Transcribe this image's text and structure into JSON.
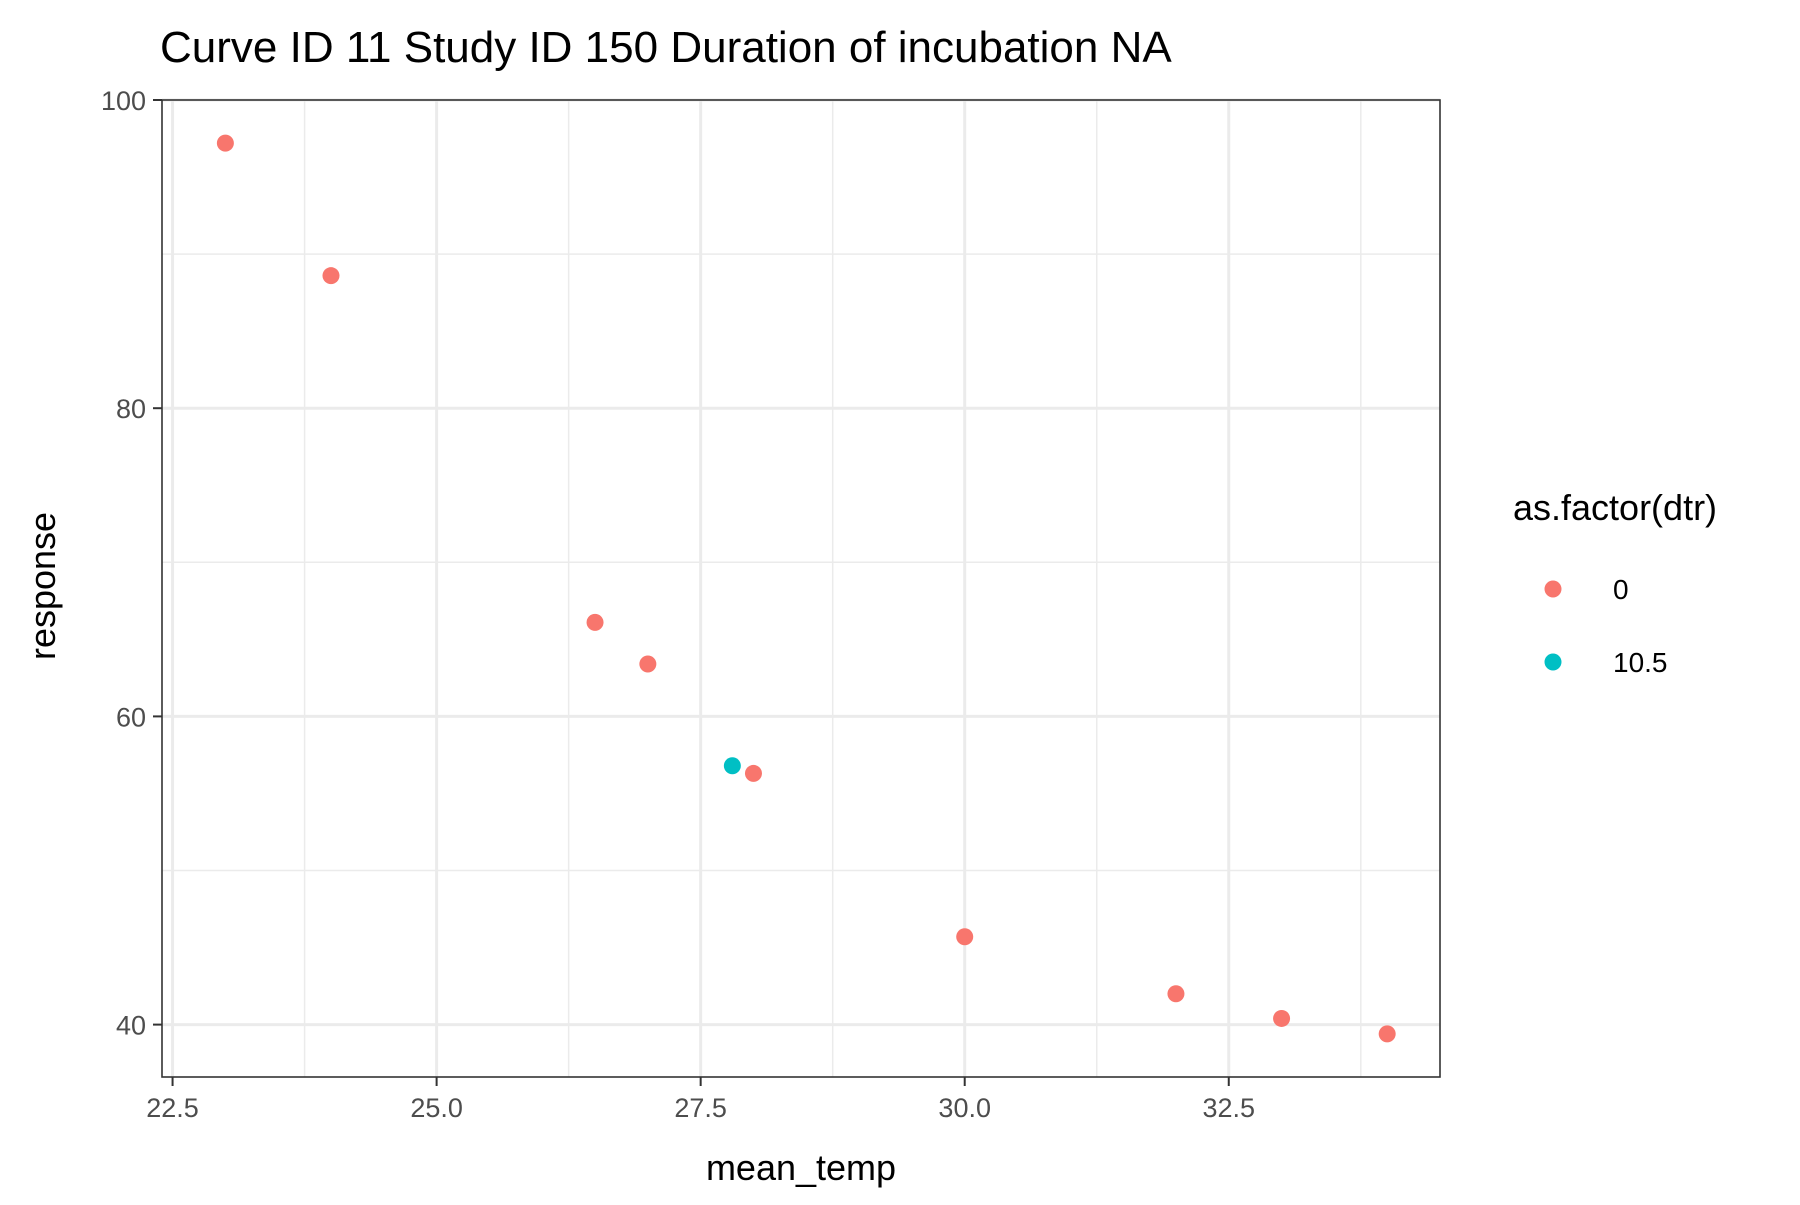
{
  "chart_data": {
    "type": "scatter",
    "title": "Curve ID 11 Study ID 150 Duration of incubation NA",
    "xlabel": "mean_temp",
    "ylabel": "response",
    "xlim": [
      22.4,
      34.5
    ],
    "ylim": [
      36.6,
      100
    ],
    "x_ticks": [
      22.5,
      25.0,
      27.5,
      30.0,
      32.5
    ],
    "x_tick_labels": [
      "22.5",
      "25.0",
      "27.5",
      "30.0",
      "32.5"
    ],
    "x_minor_ticks": [
      23.75,
      26.25,
      28.75,
      31.25,
      33.75
    ],
    "y_ticks": [
      40,
      60,
      80,
      100
    ],
    "y_tick_labels": [
      "40",
      "60",
      "80",
      "100"
    ],
    "y_minor_ticks": [
      50,
      70,
      90
    ],
    "grid": true,
    "legend": {
      "title": "as.factor(dtr)",
      "position": "right",
      "entries": [
        {
          "label": "0",
          "color": "#F8766D"
        },
        {
          "label": "10.5",
          "color": "#00BFC4"
        }
      ]
    },
    "series": [
      {
        "name": "0",
        "color": "#F8766D",
        "points": [
          {
            "x": 23.0,
            "y": 97.2
          },
          {
            "x": 24.0,
            "y": 88.6
          },
          {
            "x": 26.5,
            "y": 66.1
          },
          {
            "x": 27.0,
            "y": 63.4
          },
          {
            "x": 28.0,
            "y": 56.3
          },
          {
            "x": 30.0,
            "y": 45.7
          },
          {
            "x": 32.0,
            "y": 42.0
          },
          {
            "x": 33.0,
            "y": 40.4
          },
          {
            "x": 34.0,
            "y": 39.4
          }
        ]
      },
      {
        "name": "10.5",
        "color": "#00BFC4",
        "points": [
          {
            "x": 27.8,
            "y": 56.8
          }
        ]
      }
    ]
  }
}
